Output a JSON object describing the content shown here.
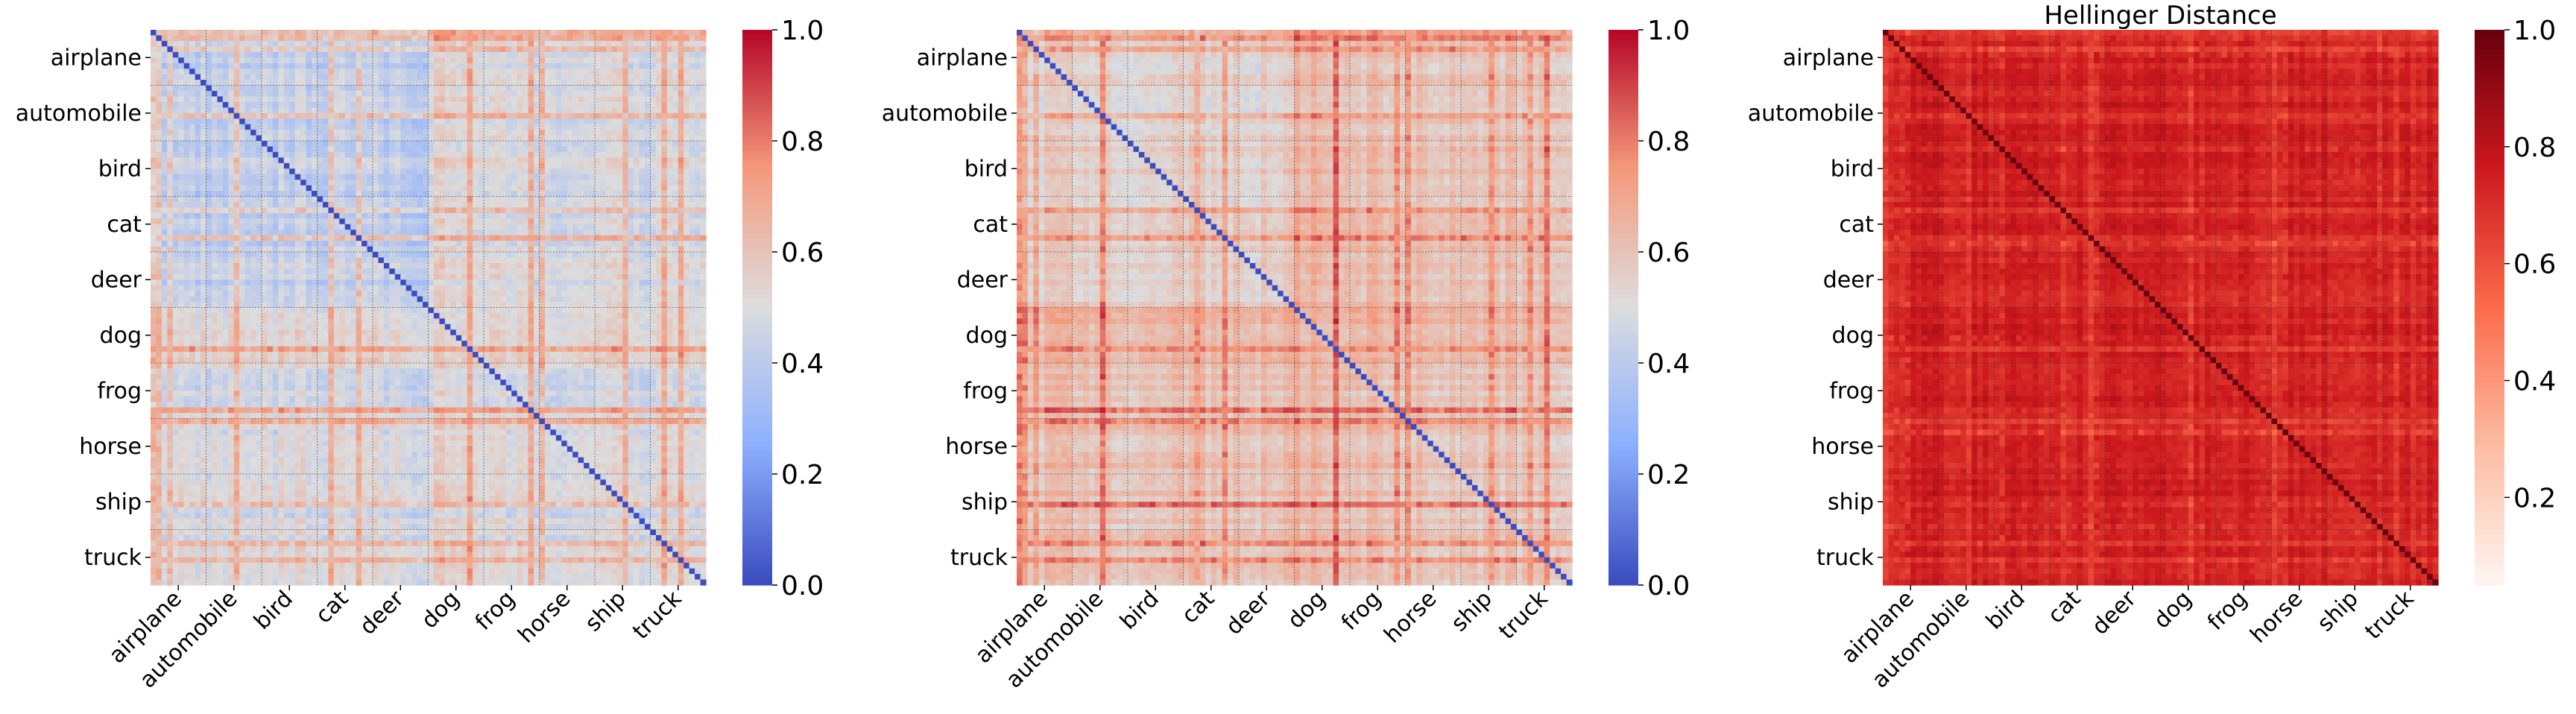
{
  "chart_data": [
    {
      "type": "heatmap",
      "title": "",
      "categories": [
        "airplane",
        "automobile",
        "bird",
        "cat",
        "deer",
        "dog",
        "frog",
        "horse",
        "ship",
        "truck"
      ],
      "colormap": "coolwarm",
      "clim": [
        0.0,
        1.0
      ],
      "colorbar_ticks": [
        "0.0",
        "0.2",
        "0.4",
        "0.6",
        "0.8",
        "1.0"
      ],
      "diagonal_value": 0.0,
      "description_values": {
        "typical_off_diagonal": 0.42,
        "dog_block_typical": 0.58,
        "high_rows": [
          "airplane",
          "automobile",
          "cat",
          "truck"
        ]
      }
    },
    {
      "type": "heatmap",
      "title": "",
      "categories": [
        "airplane",
        "automobile",
        "bird",
        "cat",
        "deer",
        "dog",
        "frog",
        "horse",
        "ship",
        "truck"
      ],
      "colormap": "coolwarm",
      "clim": [
        0.0,
        1.0
      ],
      "colorbar_ticks": [
        "0.0",
        "0.2",
        "0.4",
        "0.6",
        "0.8",
        "1.0"
      ],
      "diagonal_value": 0.0,
      "description_values": {
        "typical_off_diagonal": 0.55,
        "dog_block_typical": 0.66
      }
    },
    {
      "type": "heatmap",
      "title": "Hellinger Distance",
      "categories": [
        "airplane",
        "automobile",
        "bird",
        "cat",
        "deer",
        "dog",
        "frog",
        "horse",
        "ship",
        "truck"
      ],
      "colormap": "Reds",
      "clim": [
        0.05,
        1.0
      ],
      "colorbar_ticks": [
        "0.2",
        "0.4",
        "0.6",
        "0.8",
        "1.0"
      ],
      "diagonal_value": 1.0,
      "description_values": {
        "typical_off_diagonal": 0.72
      }
    }
  ]
}
